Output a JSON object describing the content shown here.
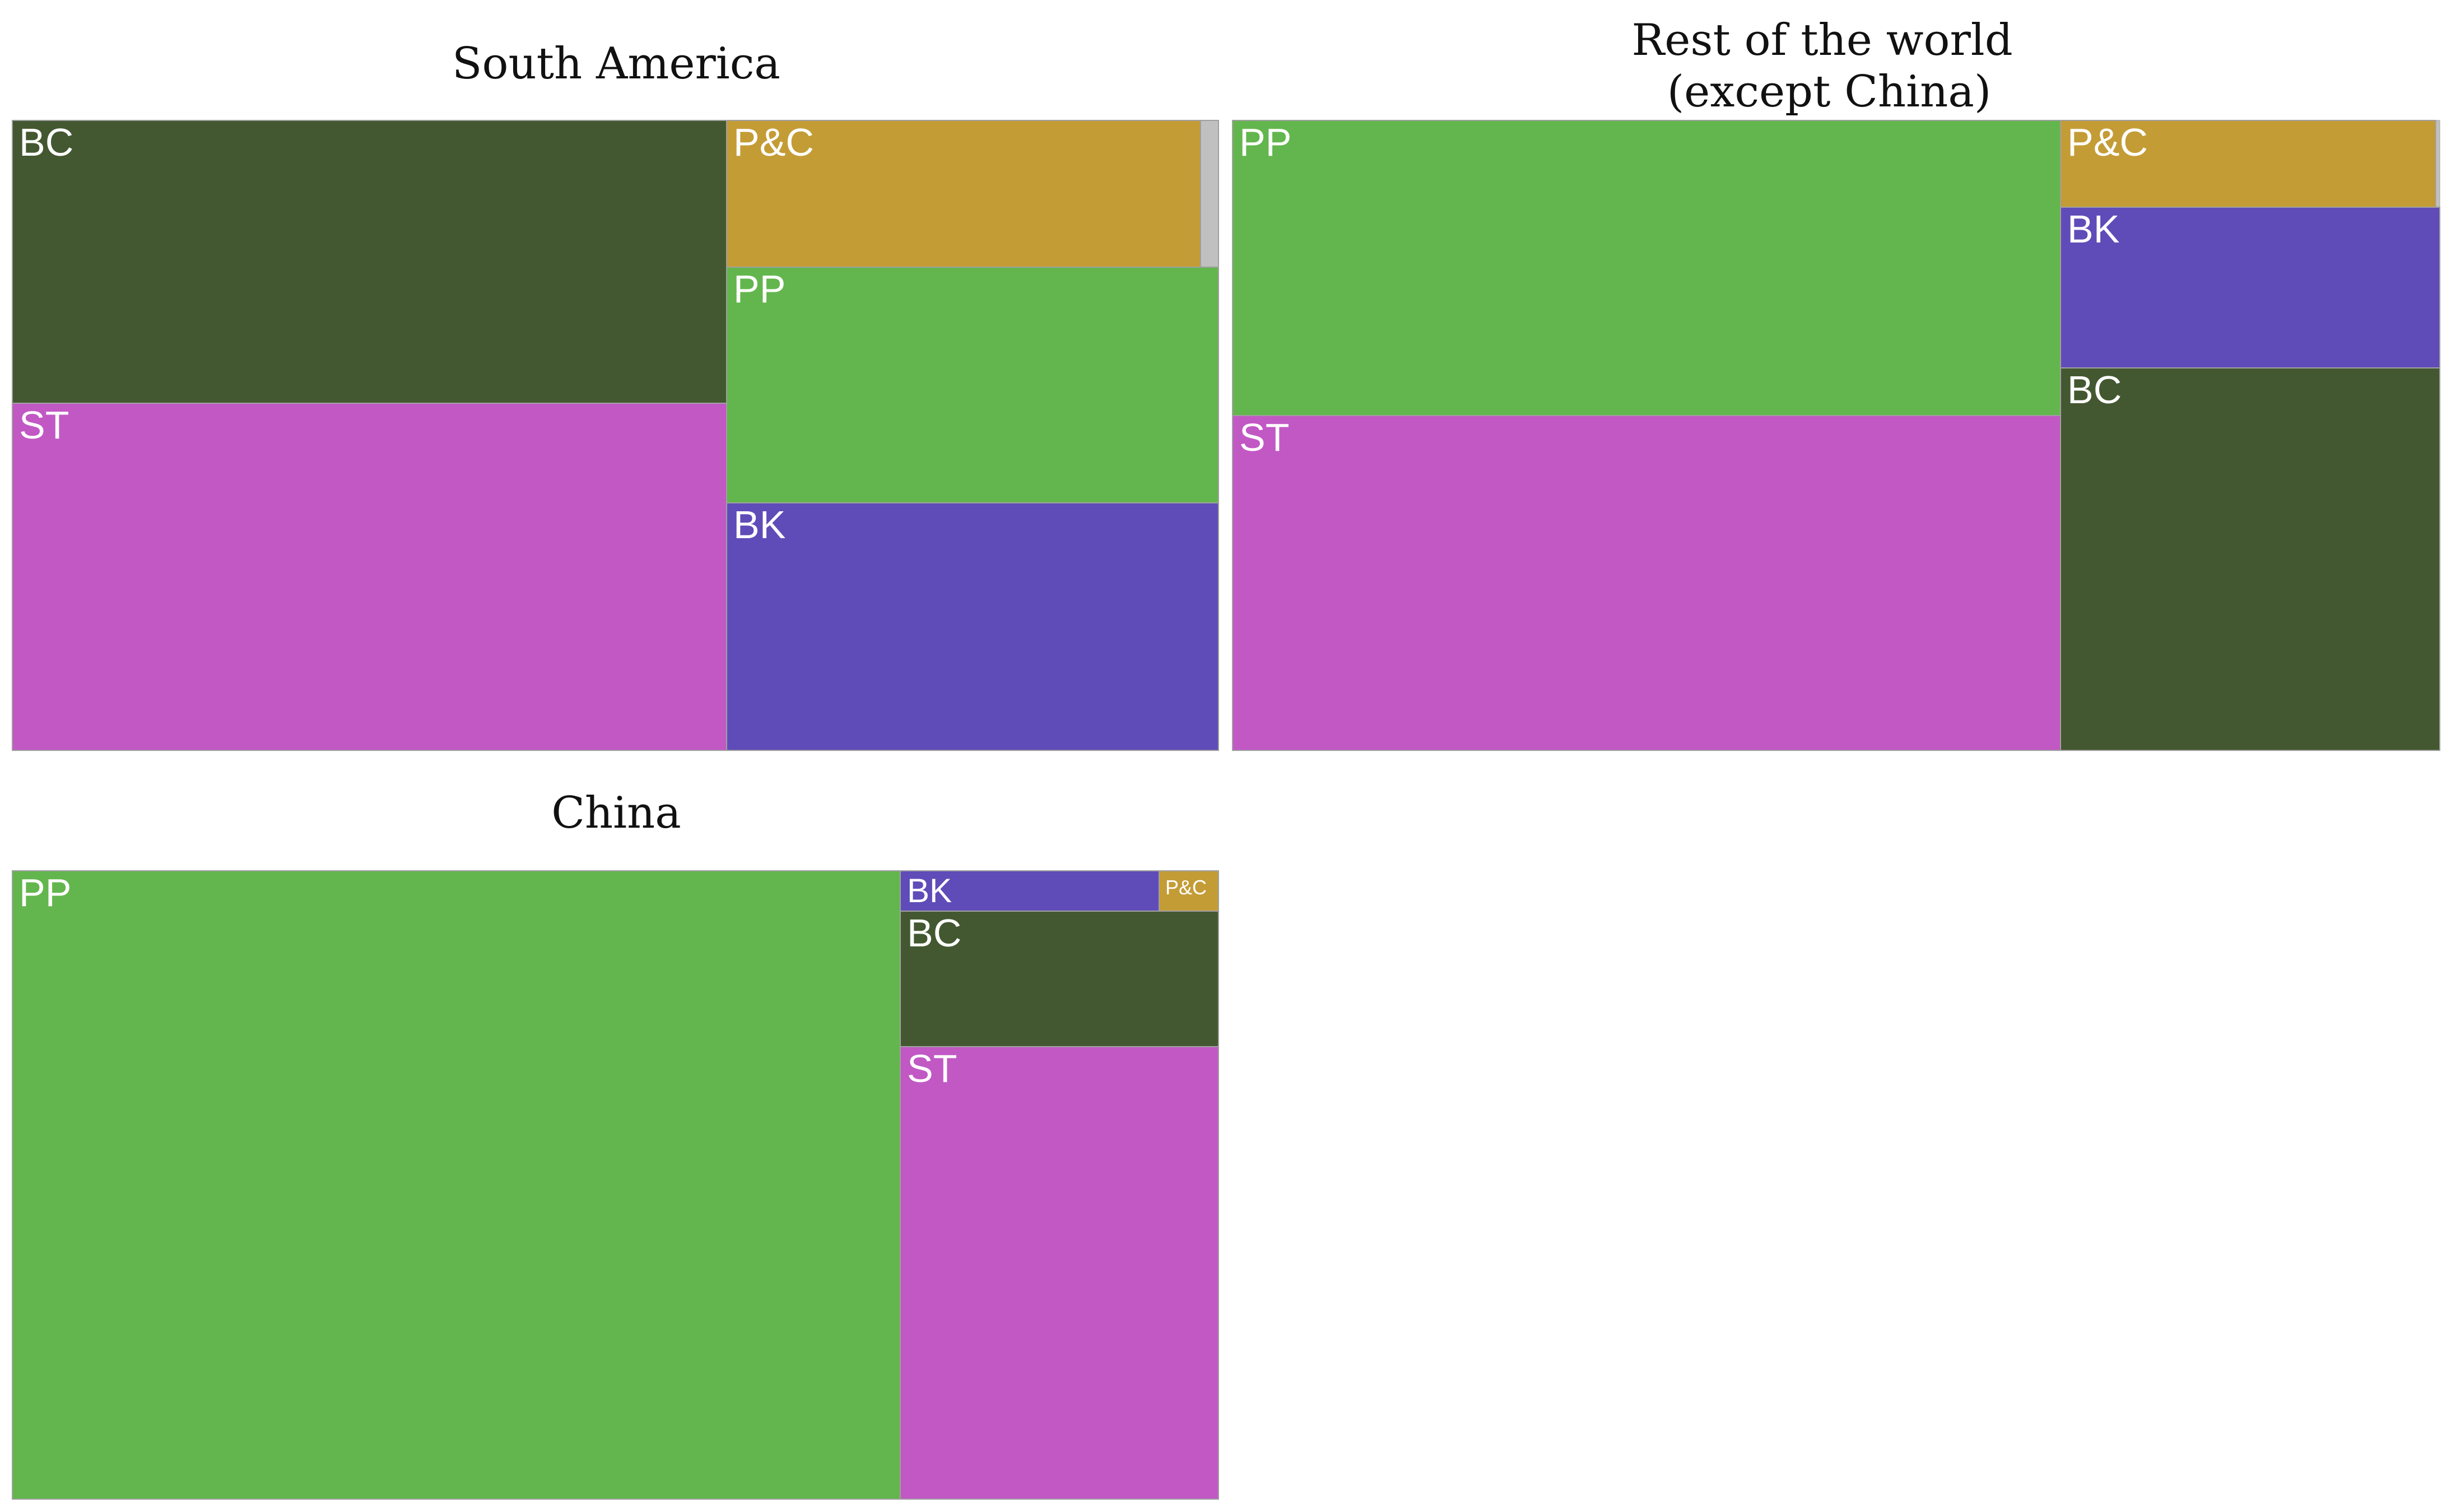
{
  "chart_data": [
    {
      "type": "treemap",
      "title": "South America",
      "colors": {
        "BC": "#435830",
        "ST": "#c158c4",
        "P&C": "#c49c36",
        "PP": "#63b64d",
        "BK": "#5f4cb8",
        "Other": "#c0c0c0"
      },
      "tiles": [
        {
          "label": "BC",
          "value": 0.3154,
          "color_key": "BC"
        },
        {
          "label": "ST",
          "value": 0.2768,
          "color_key": "ST"
        },
        {
          "label": "P&C",
          "value": 0.1192,
          "color_key": "P&C"
        },
        {
          "label": "",
          "value": 0.0046,
          "color_key": "Other"
        },
        {
          "label": "PP",
          "value": 0.1533,
          "color_key": "PP"
        },
        {
          "label": "BK",
          "value": 0.1607,
          "color_key": "BK"
        }
      ]
    },
    {
      "type": "treemap",
      "title": "Rest of the world\n(except China)",
      "colors": {
        "PP": "#63b64d",
        "ST": "#c158c4",
        "P&C": "#c49c36",
        "BK": "#5f4cb8",
        "BC": "#435830",
        "Other": "#c0c0c0"
      },
      "tiles": [
        {
          "label": "PP",
          "value": 0.3179,
          "color_key": "PP"
        },
        {
          "label": "ST",
          "value": 0.3622,
          "color_key": "ST"
        },
        {
          "label": "P&C",
          "value": 0.0404,
          "color_key": "P&C"
        },
        {
          "label": "",
          "value": 0.0011,
          "color_key": "Other"
        },
        {
          "label": "BK",
          "value": 0.0789,
          "color_key": "BK"
        },
        {
          "label": "BC",
          "value": 0.1872,
          "color_key": "BC"
        }
      ]
    },
    {
      "type": "treemap",
      "title": "China",
      "colors": {
        "PP": "#63b64d",
        "BK": "#5f4cb8",
        "P&C": "#c49c36",
        "BC": "#435830",
        "ST": "#c158c4"
      },
      "tiles": [
        {
          "label": "PP",
          "value": 0.735,
          "color_key": "PP"
        },
        {
          "label": "BK",
          "value": 0.0135,
          "color_key": "BK"
        },
        {
          "label": "P&C",
          "value": 0.0033,
          "color_key": "P&C"
        },
        {
          "label": "BC",
          "value": 0.0569,
          "color_key": "BC"
        },
        {
          "label": "ST",
          "value": 0.1906,
          "color_key": "ST"
        }
      ]
    }
  ]
}
